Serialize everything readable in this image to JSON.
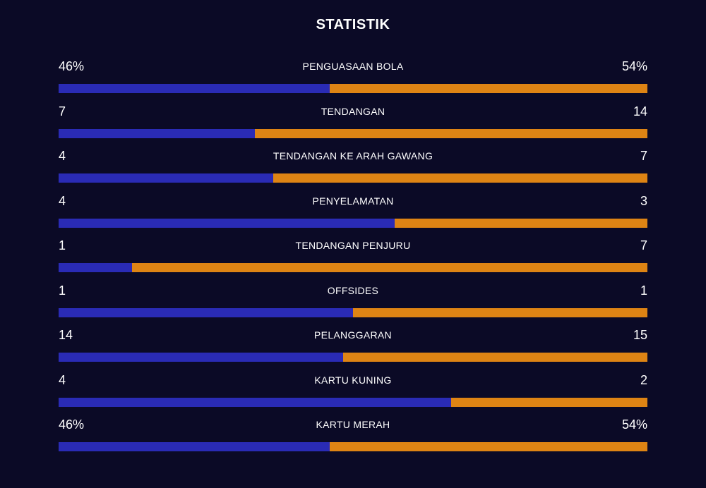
{
  "title": "STATISTIK",
  "colors": {
    "background": "#0b0a26",
    "home": "#2a2bb5",
    "away": "#de8414",
    "text": "#ffffff"
  },
  "stats": [
    {
      "label": "PENGUASAAN BOLA",
      "home": "46%",
      "away": "54%",
      "home_share": 0.46
    },
    {
      "label": "TENDANGAN",
      "home": "7",
      "away": "14",
      "home_share": 0.333
    },
    {
      "label": "TENDANGAN KE ARAH GAWANG",
      "home": "4",
      "away": "7",
      "home_share": 0.364
    },
    {
      "label": "PENYELAMATAN",
      "home": "4",
      "away": "3",
      "home_share": 0.571
    },
    {
      "label": "TENDANGAN PENJURU",
      "home": "1",
      "away": "7",
      "home_share": 0.125
    },
    {
      "label": "OFFSIDES",
      "home": "1",
      "away": "1",
      "home_share": 0.5
    },
    {
      "label": "PELANGGARAN",
      "home": "14",
      "away": "15",
      "home_share": 0.483
    },
    {
      "label": "KARTU KUNING",
      "home": "4",
      "away": "2",
      "home_share": 0.667
    },
    {
      "label": "KARTU MERAH",
      "home": "46%",
      "away": "54%",
      "home_share": 0.46
    }
  ]
}
